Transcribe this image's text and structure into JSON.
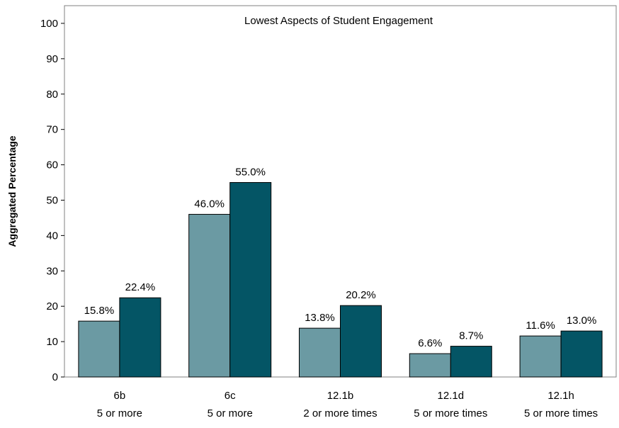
{
  "chart_data": {
    "type": "bar",
    "title": "Lowest Aspects of Student Engagement",
    "ylabel": "Aggregated Percentage",
    "xlabel": "",
    "ylim": [
      0,
      105
    ],
    "yticks": [
      0,
      10,
      20,
      30,
      40,
      50,
      60,
      70,
      80,
      90,
      100
    ],
    "grid": false,
    "categories": [
      {
        "line1": "6b",
        "line2": "5 or more"
      },
      {
        "line1": "6c",
        "line2": "5 or more"
      },
      {
        "line1": "12.1b",
        "line2": "2 or more times"
      },
      {
        "line1": "12.1d",
        "line2": "5 or more times"
      },
      {
        "line1": "12.1h",
        "line2": "5 or more times"
      }
    ],
    "series": [
      {
        "color": "#6b9aa3",
        "values": [
          15.8,
          46.0,
          13.8,
          6.6,
          11.6
        ],
        "labels": [
          "15.8%",
          "46.0%",
          "13.8%",
          "6.6%",
          "11.6%"
        ]
      },
      {
        "color": "#045565",
        "values": [
          22.4,
          55.0,
          20.2,
          8.7,
          13.0
        ],
        "labels": [
          "22.4%",
          "55.0%",
          "20.2%",
          "8.7%",
          "13.0%"
        ]
      }
    ]
  }
}
